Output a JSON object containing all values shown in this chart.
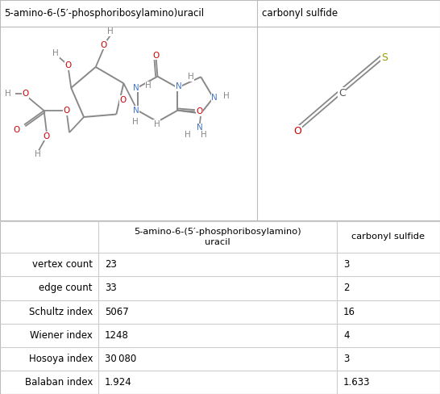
{
  "title_left": "5-amino-6-(5′-phosphoribosylamino)uracil",
  "title_right": "carbonyl sulfide",
  "col_header": "5-amino-6-(5′-phosphoribosylamino)\nuracil",
  "col_header2": "carbonyl sulfide",
  "row_labels": [
    "vertex count",
    "edge count",
    "Schultz index",
    "Wiener index",
    "Hosoya index",
    "Balaban index"
  ],
  "col1_values": [
    "23",
    "33",
    "5067",
    "1248",
    "30 080",
    "1.924"
  ],
  "col2_values": [
    "3",
    "2",
    "16",
    "4",
    "3",
    "1.633"
  ],
  "bond_color": "#888888",
  "c_color": "#555555",
  "o_color": "#cc0000",
  "n_color": "#4477cc",
  "p_color": "#e07000",
  "s_color": "#999900",
  "h_color": "#888888",
  "border_color": "#cccccc",
  "text_color": "#000000",
  "bg_color": "#ffffff"
}
